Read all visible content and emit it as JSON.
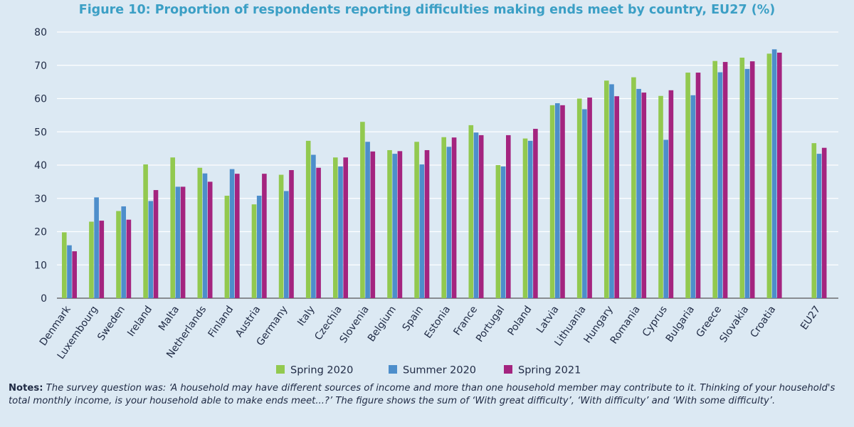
{
  "title": "Figure 10: Proportion of respondents reporting difficulties making ends meet by country, EU27 (%)",
  "notes": {
    "label": "Notes:",
    "text": "The survey question was: ‘A household may have different sources of income and more than one household member may contribute to it. Thinking of your household's total monthly income, is your household able to make ends meet...?’ The figure shows the sum of ‘With great difficulty’, ‘With difficulty’ and ‘With some difficulty’."
  },
  "colors": {
    "spring2020": "#92c94f",
    "summer2020": "#4d8ecb",
    "spring2021": "#a4247f"
  },
  "chart_data": {
    "type": "bar",
    "title": "Figure 10: Proportion of respondents reporting difficulties making ends meet by country, EU27 (%)",
    "ylim": [
      0,
      80
    ],
    "yticks": [
      0,
      10,
      20,
      30,
      40,
      50,
      60,
      70,
      80
    ],
    "grid": true,
    "legend_position": "bottom",
    "categories": [
      "Denmark",
      "Luxembourg",
      "Sweden",
      "Ireland",
      "Malta",
      "Netherlands",
      "Finland",
      "Austria",
      "Germany",
      "Italy",
      "Czechia",
      "Slovenia",
      "Belgium",
      "Spain",
      "Estonia",
      "France",
      "Portugal",
      "Poland",
      "Latvia",
      "Lithuania",
      "Hungary",
      "Romania",
      "Cyprus",
      "Bulgaria",
      "Greece",
      "Slovakia",
      "Croatia",
      "EU27"
    ],
    "series": [
      {
        "name": "Spring 2020",
        "values": [
          19.8,
          23,
          26.2,
          40.2,
          42.3,
          39.2,
          30.8,
          28.2,
          37.1,
          47.3,
          42.3,
          53,
          44.5,
          47,
          48.4,
          52,
          40,
          48,
          58,
          60,
          65.4,
          66.4,
          60.8,
          67.8,
          71.3,
          72.3,
          73.5,
          46.6
        ]
      },
      {
        "name": "Summer 2020",
        "values": [
          15.9,
          30.3,
          27.6,
          29.2,
          33.5,
          37.5,
          38.8,
          30.8,
          32.2,
          43.1,
          39.6,
          47,
          43.4,
          40.2,
          45.5,
          49.8,
          39.6,
          47.3,
          58.6,
          56.8,
          64.3,
          62.9,
          47.6,
          61,
          67.9,
          68.9,
          74.8,
          43.4
        ]
      },
      {
        "name": "Spring 2021",
        "values": [
          14.1,
          23.3,
          23.6,
          32.5,
          33.5,
          35,
          37.4,
          37.4,
          38.5,
          39.2,
          42.3,
          44.1,
          44.2,
          44.5,
          48.3,
          49,
          49,
          50.9,
          58,
          60.3,
          60.7,
          61.8,
          62.5,
          67.8,
          71,
          71.2,
          73.8,
          45.2
        ]
      }
    ]
  }
}
